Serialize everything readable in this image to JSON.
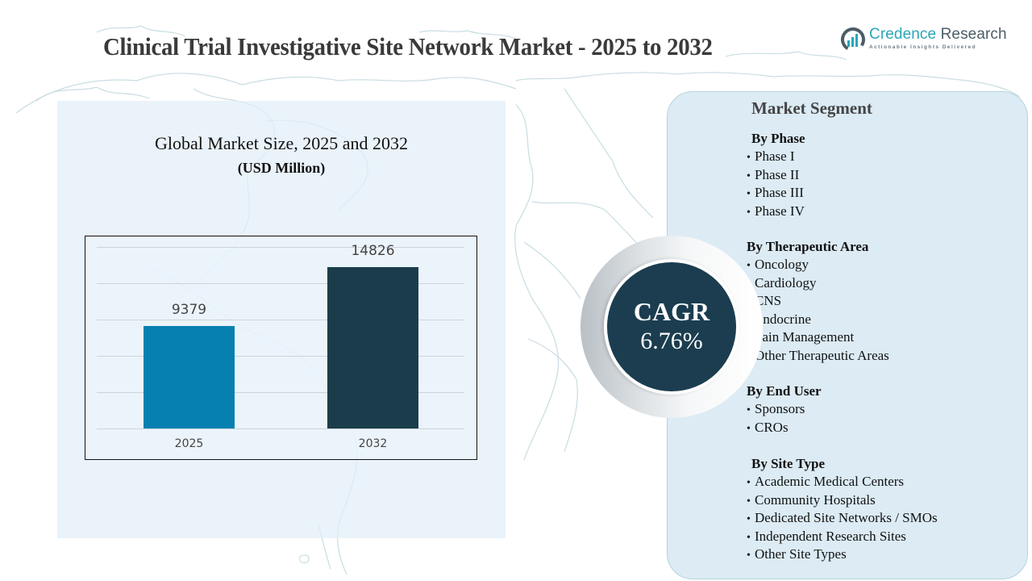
{
  "header": {
    "title": "Clinical Trial Investigative Site Network Market - 2025 to 2032"
  },
  "logo": {
    "name_part1": "Credence",
    "name_part2": "Research",
    "tagline": "Actionable Insights Delivered",
    "colors": {
      "primary": "#2aa6b8",
      "secondary": "#4b5d67"
    }
  },
  "chart_panel": {
    "title": "Global Market Size, 2025 and 2032",
    "subtitle": "(USD Million)"
  },
  "chart_data": {
    "type": "bar",
    "title": "Global Market Size, 2025 and 2032",
    "subtitle": "(USD Million)",
    "xlabel": "",
    "ylabel": "USD Million",
    "categories": [
      "2025",
      "2032"
    ],
    "values": [
      9379,
      14826
    ],
    "value_labels": [
      "9379",
      "14826"
    ],
    "colors": [
      "#0680b0",
      "#1b3d4b"
    ],
    "ylim": [
      0,
      18000
    ],
    "grid": true,
    "legend": "none"
  },
  "cagr": {
    "label": "CAGR",
    "value": "6.76%",
    "color": "#1b3d4f"
  },
  "segments": {
    "title": "Market Segment",
    "groups": [
      {
        "heading": "By Phase",
        "items": [
          "Phase I",
          "Phase II",
          "Phase III",
          "Phase IV"
        ]
      },
      {
        "heading": "By Therapeutic Area",
        "items": [
          "Oncology",
          "Cardiology",
          "CNS",
          "Endocrine",
          "Pain Management",
          "Other Therapeutic Areas"
        ]
      },
      {
        "heading": "By End User",
        "items": [
          "Sponsors",
          "CROs"
        ]
      },
      {
        "heading": "By Site Type",
        "items": [
          "Academic Medical Centers",
          "Community Hospitals",
          "Dedicated Site Networks / SMOs",
          "Independent Research Sites",
          "Other Site Types"
        ]
      }
    ],
    "bullet": "•"
  }
}
